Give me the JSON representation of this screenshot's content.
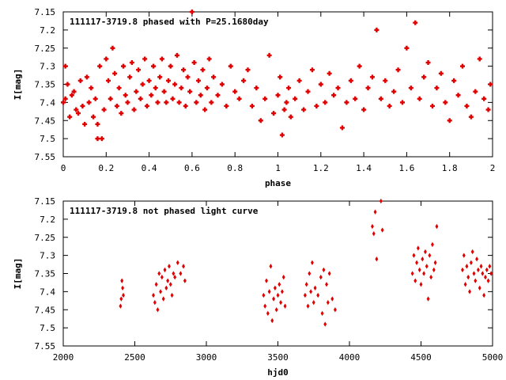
{
  "chart_data": [
    {
      "type": "scatter",
      "title": "111117-3719.8 phased with P=25.1680day",
      "xlabel": "phase",
      "ylabel": "I[mag]",
      "xlim": [
        0,
        2
      ],
      "ylim": [
        7.55,
        7.15
      ],
      "y_inverted": true,
      "grid": false,
      "marker": "plus",
      "color": "#e00000",
      "xticks": [
        "0",
        "0.2",
        "0.4",
        "0.6",
        "0.8",
        "1",
        "1.2",
        "1.4",
        "1.6",
        "1.8",
        "2"
      ],
      "yticks": [
        "7.15",
        "7.2",
        "7.25",
        "7.3",
        "7.35",
        "7.4",
        "7.45",
        "7.5",
        "7.55"
      ],
      "points": [
        [
          0.0,
          7.4
        ],
        [
          0.01,
          7.3
        ],
        [
          0.01,
          7.39
        ],
        [
          0.02,
          7.35
        ],
        [
          0.03,
          7.44
        ],
        [
          0.04,
          7.38
        ],
        [
          0.05,
          7.37
        ],
        [
          0.06,
          7.42
        ],
        [
          0.07,
          7.43
        ],
        [
          0.08,
          7.34
        ],
        [
          0.09,
          7.41
        ],
        [
          0.1,
          7.46
        ],
        [
          0.11,
          7.33
        ],
        [
          0.12,
          7.4
        ],
        [
          0.13,
          7.36
        ],
        [
          0.14,
          7.44
        ],
        [
          0.15,
          7.39
        ],
        [
          0.16,
          7.46
        ],
        [
          0.16,
          7.5
        ],
        [
          0.17,
          7.3
        ],
        [
          0.18,
          7.5
        ],
        [
          0.19,
          7.42
        ],
        [
          0.2,
          7.28
        ],
        [
          0.21,
          7.34
        ],
        [
          0.22,
          7.39
        ],
        [
          0.23,
          7.25
        ],
        [
          0.24,
          7.32
        ],
        [
          0.25,
          7.41
        ],
        [
          0.26,
          7.36
        ],
        [
          0.27,
          7.43
        ],
        [
          0.28,
          7.3
        ],
        [
          0.29,
          7.38
        ],
        [
          0.3,
          7.4
        ],
        [
          0.31,
          7.33
        ],
        [
          0.32,
          7.29
        ],
        [
          0.33,
          7.42
        ],
        [
          0.34,
          7.37
        ],
        [
          0.35,
          7.31
        ],
        [
          0.36,
          7.39
        ],
        [
          0.37,
          7.35
        ],
        [
          0.38,
          7.28
        ],
        [
          0.39,
          7.41
        ],
        [
          0.4,
          7.34
        ],
        [
          0.41,
          7.38
        ],
        [
          0.42,
          7.3
        ],
        [
          0.43,
          7.36
        ],
        [
          0.44,
          7.4
        ],
        [
          0.45,
          7.33
        ],
        [
          0.46,
          7.28
        ],
        [
          0.47,
          7.37
        ],
        [
          0.48,
          7.4
        ],
        [
          0.49,
          7.34
        ],
        [
          0.5,
          7.3
        ],
        [
          0.51,
          7.39
        ],
        [
          0.52,
          7.35
        ],
        [
          0.53,
          7.27
        ],
        [
          0.54,
          7.4
        ],
        [
          0.55,
          7.36
        ],
        [
          0.56,
          7.31
        ],
        [
          0.57,
          7.41
        ],
        [
          0.58,
          7.33
        ],
        [
          0.59,
          7.37
        ],
        [
          0.6,
          7.15
        ],
        [
          0.61,
          7.29
        ],
        [
          0.62,
          7.4
        ],
        [
          0.63,
          7.34
        ],
        [
          0.64,
          7.38
        ],
        [
          0.65,
          7.31
        ],
        [
          0.66,
          7.42
        ],
        [
          0.67,
          7.36
        ],
        [
          0.68,
          7.28
        ],
        [
          0.69,
          7.4
        ],
        [
          0.7,
          7.33
        ],
        [
          0.72,
          7.38
        ],
        [
          0.74,
          7.35
        ],
        [
          0.76,
          7.41
        ],
        [
          0.78,
          7.3
        ],
        [
          0.8,
          7.37
        ],
        [
          0.82,
          7.39
        ],
        [
          0.84,
          7.34
        ],
        [
          0.86,
          7.31
        ],
        [
          0.88,
          7.41
        ],
        [
          0.9,
          7.36
        ],
        [
          0.92,
          7.45
        ],
        [
          0.94,
          7.39
        ],
        [
          0.96,
          7.27
        ],
        [
          0.98,
          7.43
        ],
        [
          1.0,
          7.38
        ],
        [
          1.01,
          7.33
        ],
        [
          1.02,
          7.49
        ],
        [
          1.03,
          7.42
        ],
        [
          1.04,
          7.4
        ],
        [
          1.05,
          7.36
        ],
        [
          1.06,
          7.44
        ],
        [
          1.08,
          7.39
        ],
        [
          1.1,
          7.34
        ],
        [
          1.12,
          7.42
        ],
        [
          1.14,
          7.37
        ],
        [
          1.16,
          7.31
        ],
        [
          1.18,
          7.41
        ],
        [
          1.2,
          7.35
        ],
        [
          1.22,
          7.4
        ],
        [
          1.24,
          7.32
        ],
        [
          1.26,
          7.38
        ],
        [
          1.28,
          7.36
        ],
        [
          1.3,
          7.47
        ],
        [
          1.32,
          7.4
        ],
        [
          1.34,
          7.34
        ],
        [
          1.36,
          7.39
        ],
        [
          1.38,
          7.3
        ],
        [
          1.4,
          7.42
        ],
        [
          1.42,
          7.36
        ],
        [
          1.44,
          7.33
        ],
        [
          1.46,
          7.2
        ],
        [
          1.48,
          7.39
        ],
        [
          1.5,
          7.34
        ],
        [
          1.52,
          7.41
        ],
        [
          1.54,
          7.37
        ],
        [
          1.56,
          7.31
        ],
        [
          1.58,
          7.4
        ],
        [
          1.6,
          7.25
        ],
        [
          1.62,
          7.36
        ],
        [
          1.64,
          7.18
        ],
        [
          1.66,
          7.39
        ],
        [
          1.68,
          7.33
        ],
        [
          1.7,
          7.29
        ],
        [
          1.72,
          7.41
        ],
        [
          1.74,
          7.36
        ],
        [
          1.76,
          7.32
        ],
        [
          1.78,
          7.4
        ],
        [
          1.8,
          7.45
        ],
        [
          1.82,
          7.34
        ],
        [
          1.84,
          7.38
        ],
        [
          1.86,
          7.3
        ],
        [
          1.88,
          7.41
        ],
        [
          1.9,
          7.44
        ],
        [
          1.92,
          7.37
        ],
        [
          1.94,
          7.28
        ],
        [
          1.96,
          7.39
        ],
        [
          1.98,
          7.42
        ],
        [
          1.99,
          7.35
        ]
      ]
    },
    {
      "type": "scatter",
      "title": "111117-3719.8 not phased light curve",
      "xlabel": "hjd0",
      "ylabel": "I[mag]",
      "xlim": [
        2000,
        5000
      ],
      "ylim": [
        7.55,
        7.15
      ],
      "y_inverted": true,
      "grid": false,
      "marker": "diamond",
      "color": "#e00000",
      "xticks": [
        "2000",
        "2500",
        "3000",
        "3500",
        "4000",
        "4500",
        "5000"
      ],
      "yticks": [
        "7.15",
        "7.2",
        "7.25",
        "7.3",
        "7.35",
        "7.4",
        "7.45",
        "7.5",
        "7.55"
      ],
      "points": [
        [
          2400,
          7.44
        ],
        [
          2405,
          7.42
        ],
        [
          2410,
          7.37
        ],
        [
          2415,
          7.39
        ],
        [
          2420,
          7.41
        ],
        [
          2630,
          7.41
        ],
        [
          2640,
          7.43
        ],
        [
          2650,
          7.38
        ],
        [
          2660,
          7.45
        ],
        [
          2670,
          7.35
        ],
        [
          2680,
          7.4
        ],
        [
          2690,
          7.36
        ],
        [
          2700,
          7.42
        ],
        [
          2710,
          7.34
        ],
        [
          2720,
          7.39
        ],
        [
          2730,
          7.37
        ],
        [
          2740,
          7.33
        ],
        [
          2750,
          7.38
        ],
        [
          2760,
          7.41
        ],
        [
          2770,
          7.35
        ],
        [
          2780,
          7.36
        ],
        [
          2800,
          7.32
        ],
        [
          2820,
          7.35
        ],
        [
          2840,
          7.33
        ],
        [
          2850,
          7.37
        ],
        [
          3400,
          7.41
        ],
        [
          3410,
          7.44
        ],
        [
          3420,
          7.37
        ],
        [
          3430,
          7.46
        ],
        [
          3440,
          7.4
        ],
        [
          3450,
          7.33
        ],
        [
          3460,
          7.48
        ],
        [
          3470,
          7.42
        ],
        [
          3480,
          7.39
        ],
        [
          3490,
          7.45
        ],
        [
          3500,
          7.41
        ],
        [
          3510,
          7.38
        ],
        [
          3520,
          7.43
        ],
        [
          3530,
          7.4
        ],
        [
          3540,
          7.36
        ],
        [
          3550,
          7.44
        ],
        [
          3690,
          7.41
        ],
        [
          3700,
          7.38
        ],
        [
          3710,
          7.44
        ],
        [
          3720,
          7.35
        ],
        [
          3730,
          7.4
        ],
        [
          3740,
          7.32
        ],
        [
          3750,
          7.43
        ],
        [
          3760,
          7.39
        ],
        [
          3780,
          7.41
        ],
        [
          3800,
          7.36
        ],
        [
          3810,
          7.46
        ],
        [
          3820,
          7.34
        ],
        [
          3830,
          7.49
        ],
        [
          3840,
          7.38
        ],
        [
          3850,
          7.43
        ],
        [
          3860,
          7.35
        ],
        [
          3880,
          7.42
        ],
        [
          3900,
          7.45
        ],
        [
          4160,
          7.22
        ],
        [
          4170,
          7.24
        ],
        [
          4180,
          7.18
        ],
        [
          4190,
          7.31
        ],
        [
          4220,
          7.15
        ],
        [
          4230,
          7.23
        ],
        [
          4440,
          7.35
        ],
        [
          4450,
          7.3
        ],
        [
          4460,
          7.37
        ],
        [
          4470,
          7.32
        ],
        [
          4480,
          7.28
        ],
        [
          4490,
          7.34
        ],
        [
          4500,
          7.38
        ],
        [
          4510,
          7.31
        ],
        [
          4520,
          7.35
        ],
        [
          4530,
          7.29
        ],
        [
          4540,
          7.33
        ],
        [
          4550,
          7.42
        ],
        [
          4560,
          7.3
        ],
        [
          4570,
          7.36
        ],
        [
          4580,
          7.27
        ],
        [
          4590,
          7.34
        ],
        [
          4600,
          7.32
        ],
        [
          4610,
          7.22
        ],
        [
          4790,
          7.34
        ],
        [
          4800,
          7.3
        ],
        [
          4810,
          7.38
        ],
        [
          4820,
          7.33
        ],
        [
          4830,
          7.36
        ],
        [
          4840,
          7.4
        ],
        [
          4850,
          7.32
        ],
        [
          4860,
          7.29
        ],
        [
          4870,
          7.35
        ],
        [
          4880,
          7.37
        ],
        [
          4890,
          7.31
        ],
        [
          4900,
          7.34
        ],
        [
          4910,
          7.39
        ],
        [
          4920,
          7.33
        ],
        [
          4930,
          7.35
        ],
        [
          4940,
          7.41
        ],
        [
          4950,
          7.36
        ],
        [
          4960,
          7.34
        ],
        [
          4970,
          7.37
        ],
        [
          4980,
          7.33
        ],
        [
          4990,
          7.35
        ]
      ]
    }
  ]
}
